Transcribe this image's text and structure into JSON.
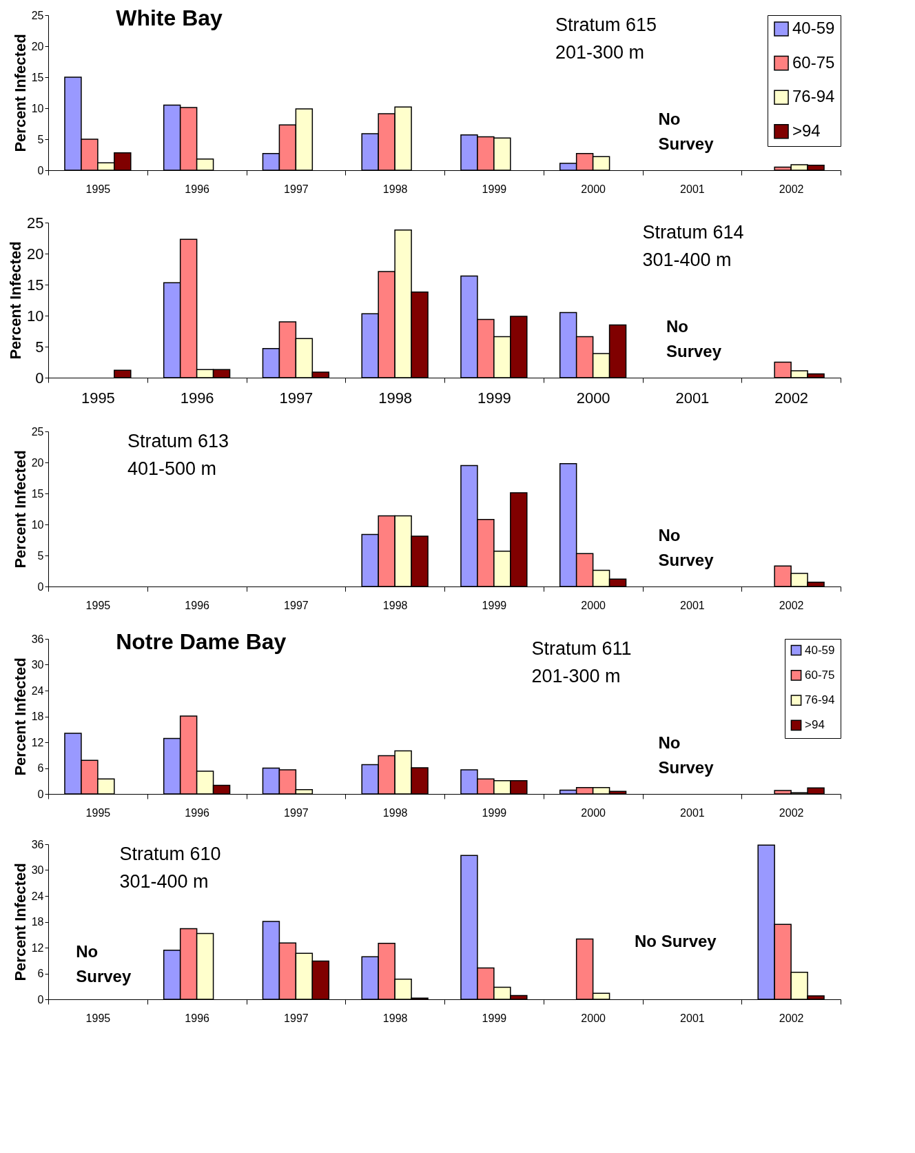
{
  "chart_data": [
    {
      "type": "bar",
      "title": "White Bay",
      "ylabel": "Percent Infected",
      "legend": "top right",
      "annotations": [
        "Stratum 615",
        "201-300 m",
        "No Survey"
      ],
      "categories": [
        "1995",
        "1996",
        "1997",
        "1998",
        "1999",
        "2000",
        "2001",
        "2002"
      ],
      "ylim": [
        0,
        25
      ],
      "yticks": [
        0,
        5,
        10,
        15,
        20,
        25
      ],
      "series": [
        {
          "name": "40-59",
          "color": "#9999ff",
          "values": [
            15,
            10.5,
            2.7,
            5.9,
            5.7,
            1.1,
            null,
            null
          ]
        },
        {
          "name": "60-75",
          "color": "#ff8080",
          "values": [
            5,
            10.1,
            7.3,
            9.1,
            5.4,
            2.7,
            null,
            0.5
          ]
        },
        {
          "name": "76-94",
          "color": "#ffffcc",
          "values": [
            1.2,
            1.8,
            9.9,
            10.2,
            5.2,
            2.2,
            null,
            0.9
          ]
        },
        {
          "name": ">94",
          "color": "#800000",
          "values": [
            2.8,
            null,
            null,
            null,
            null,
            null,
            null,
            0.8
          ]
        }
      ]
    },
    {
      "type": "bar",
      "ylabel": "Percent Infected",
      "annotations": [
        "Stratum 614",
        "301-400 m",
        "No Survey"
      ],
      "categories": [
        "1995",
        "1996",
        "1997",
        "1998",
        "1999",
        "2000",
        "2001",
        "2002"
      ],
      "ylim": [
        0,
        25
      ],
      "yticks": [
        0,
        5,
        10,
        15,
        20,
        25
      ],
      "series": [
        {
          "color": "#9999ff",
          "values": [
            null,
            15.3,
            4.7,
            10.3,
            16.4,
            10.5,
            null,
            null
          ]
        },
        {
          "color": "#ff8080",
          "values": [
            null,
            22.3,
            9.0,
            17.1,
            9.4,
            6.6,
            null,
            2.5
          ]
        },
        {
          "color": "#ffffcc",
          "values": [
            null,
            1.3,
            6.3,
            23.8,
            6.6,
            3.9,
            null,
            1.1
          ]
        },
        {
          "color": "#800000",
          "values": [
            1.2,
            1.3,
            0.9,
            13.8,
            9.9,
            8.5,
            null,
            0.6
          ]
        }
      ]
    },
    {
      "type": "bar",
      "ylabel": "Percent Infected",
      "annotations": [
        "Stratum 613",
        "401-500 m",
        "No Survey"
      ],
      "categories": [
        "1995",
        "1996",
        "1997",
        "1998",
        "1999",
        "2000",
        "2001",
        "2002"
      ],
      "ylim": [
        0,
        25
      ],
      "yticks": [
        0,
        5,
        10,
        15,
        20,
        25
      ],
      "series": [
        {
          "color": "#9999ff",
          "values": [
            null,
            null,
            null,
            8.4,
            19.5,
            19.8,
            null,
            null
          ]
        },
        {
          "color": "#ff8080",
          "values": [
            null,
            null,
            null,
            11.4,
            10.8,
            5.3,
            null,
            3.3
          ]
        },
        {
          "color": "#ffffcc",
          "values": [
            null,
            null,
            null,
            11.4,
            5.7,
            2.6,
            null,
            2.1
          ]
        },
        {
          "color": "#800000",
          "values": [
            null,
            null,
            null,
            8.1,
            15.1,
            1.2,
            null,
            0.7
          ]
        }
      ]
    },
    {
      "type": "bar",
      "title": "Notre Dame Bay",
      "ylabel": "Percent Infected",
      "legend": "top right",
      "annotations": [
        "Stratum 611",
        "201-300 m",
        "No Survey"
      ],
      "categories": [
        "1995",
        "1996",
        "1997",
        "1998",
        "1999",
        "2000",
        "2001",
        "2002"
      ],
      "ylim": [
        0,
        36
      ],
      "yticks": [
        0,
        6,
        12,
        18,
        24,
        30,
        36
      ],
      "series": [
        {
          "name": "40-59",
          "color": "#9999ff",
          "values": [
            14.1,
            12.9,
            6.0,
            6.8,
            5.6,
            0.9,
            null,
            null
          ]
        },
        {
          "name": "60-75",
          "color": "#ff8080",
          "values": [
            7.8,
            18.1,
            5.6,
            8.9,
            3.5,
            1.5,
            null,
            0.8
          ]
        },
        {
          "name": "76-94",
          "color": "#ffffcc",
          "values": [
            3.5,
            5.3,
            1.0,
            10.0,
            3.1,
            1.5,
            null,
            0.3
          ]
        },
        {
          "name": ">94",
          "color": "#800000",
          "values": [
            null,
            2.0,
            null,
            6.1,
            3.1,
            0.6,
            null,
            1.4
          ]
        }
      ]
    },
    {
      "type": "bar",
      "ylabel": "Percent Infected",
      "annotations": [
        "Stratum 610",
        "301-400 m",
        "No Survey",
        "No Survey"
      ],
      "categories": [
        "1995",
        "1996",
        "1997",
        "1998",
        "1999",
        "2000",
        "2001",
        "2002"
      ],
      "ylim": [
        0,
        36
      ],
      "yticks": [
        0,
        6,
        12,
        18,
        24,
        30,
        36
      ],
      "series": [
        {
          "color": "#9999ff",
          "values": [
            null,
            11.4,
            18.1,
            9.9,
            33.4,
            null,
            null,
            35.8
          ]
        },
        {
          "color": "#ff8080",
          "values": [
            null,
            16.4,
            13.1,
            13.0,
            7.3,
            14.0,
            null,
            17.4
          ]
        },
        {
          "color": "#ffffcc",
          "values": [
            null,
            15.3,
            10.7,
            4.7,
            2.8,
            1.4,
            null,
            6.3
          ]
        },
        {
          "color": "#800000",
          "values": [
            null,
            null,
            8.9,
            0.3,
            0.9,
            null,
            null,
            0.8
          ]
        }
      ]
    }
  ]
}
